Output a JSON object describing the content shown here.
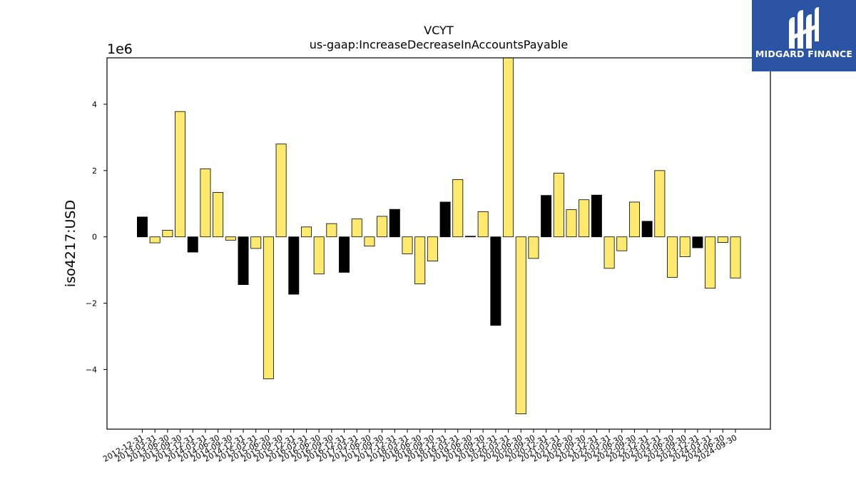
{
  "brand": {
    "name": "MIDGARD FINANCE",
    "bg_color": "#2b55a4",
    "icon": "midgard-logo-icon"
  },
  "chart_data": {
    "type": "bar",
    "title": "VCYT",
    "subtitle": "us-gaap:IncreaseDecreaseInAccountsPayable",
    "ylabel": "iso4217:USD",
    "xlabel": "",
    "y_offset_label": "1e6",
    "ylim": [
      -5.8,
      5.4
    ],
    "yticks": [
      -4,
      -2,
      0,
      2,
      4
    ],
    "ytick_labels": [
      "−4",
      "−2",
      "0",
      "2",
      "4"
    ],
    "grid": false,
    "colors": {
      "yellow": "#fde96d",
      "black": "#000000"
    },
    "categories": [
      "2012-12-31",
      "2013-03-31",
      "2013-06-30",
      "2013-09-30",
      "2013-12-31",
      "2014-03-31",
      "2014-06-30",
      "2014-09-30",
      "2014-12-31",
      "2015-03-31",
      "2015-06-30",
      "2015-09-30",
      "2015-12-31",
      "2016-03-31",
      "2016-06-30",
      "2016-09-30",
      "2016-12-31",
      "2017-03-31",
      "2017-06-30",
      "2017-09-30",
      "2017-12-31",
      "2018-03-31",
      "2018-06-30",
      "2018-09-30",
      "2018-12-31",
      "2019-03-31",
      "2019-06-30",
      "2019-09-30",
      "2019-12-31",
      "2020-03-31",
      "2020-06-30",
      "2020-09-30",
      "2020-12-31",
      "2021-03-31",
      "2021-06-30",
      "2021-09-30",
      "2021-12-31",
      "2022-03-31",
      "2022-06-30",
      "2022-09-30",
      "2022-12-31",
      "2023-03-31",
      "2023-06-30",
      "2023-09-30",
      "2023-12-31",
      "2024-03-31",
      "2024-06-30",
      "2024-09-30"
    ],
    "values": [
      0.6,
      -0.18,
      0.2,
      3.78,
      -0.46,
      2.05,
      1.34,
      -0.1,
      -1.44,
      -0.35,
      -4.28,
      2.8,
      -1.73,
      0.3,
      -1.12,
      0.4,
      -1.07,
      0.54,
      -0.28,
      0.62,
      0.83,
      -0.51,
      -1.42,
      -0.73,
      1.05,
      1.73,
      0.02,
      0.76,
      -2.67,
      5.45,
      -5.34,
      -0.65,
      1.25,
      1.92,
      0.82,
      1.12,
      1.26,
      -0.95,
      -0.42,
      1.05,
      0.47,
      2.0,
      -1.22,
      -0.6,
      -0.33,
      -1.55,
      -0.17,
      -1.24
    ],
    "bar_colors": [
      "black",
      "yellow",
      "yellow",
      "yellow",
      "black",
      "yellow",
      "yellow",
      "yellow",
      "black",
      "yellow",
      "yellow",
      "yellow",
      "black",
      "yellow",
      "yellow",
      "yellow",
      "black",
      "yellow",
      "yellow",
      "yellow",
      "black",
      "yellow",
      "yellow",
      "yellow",
      "black",
      "yellow",
      "black",
      "yellow",
      "black",
      "yellow",
      "yellow",
      "yellow",
      "black",
      "yellow",
      "yellow",
      "yellow",
      "black",
      "yellow",
      "yellow",
      "yellow",
      "black",
      "yellow",
      "yellow",
      "yellow",
      "black",
      "yellow",
      "yellow",
      "yellow"
    ]
  }
}
